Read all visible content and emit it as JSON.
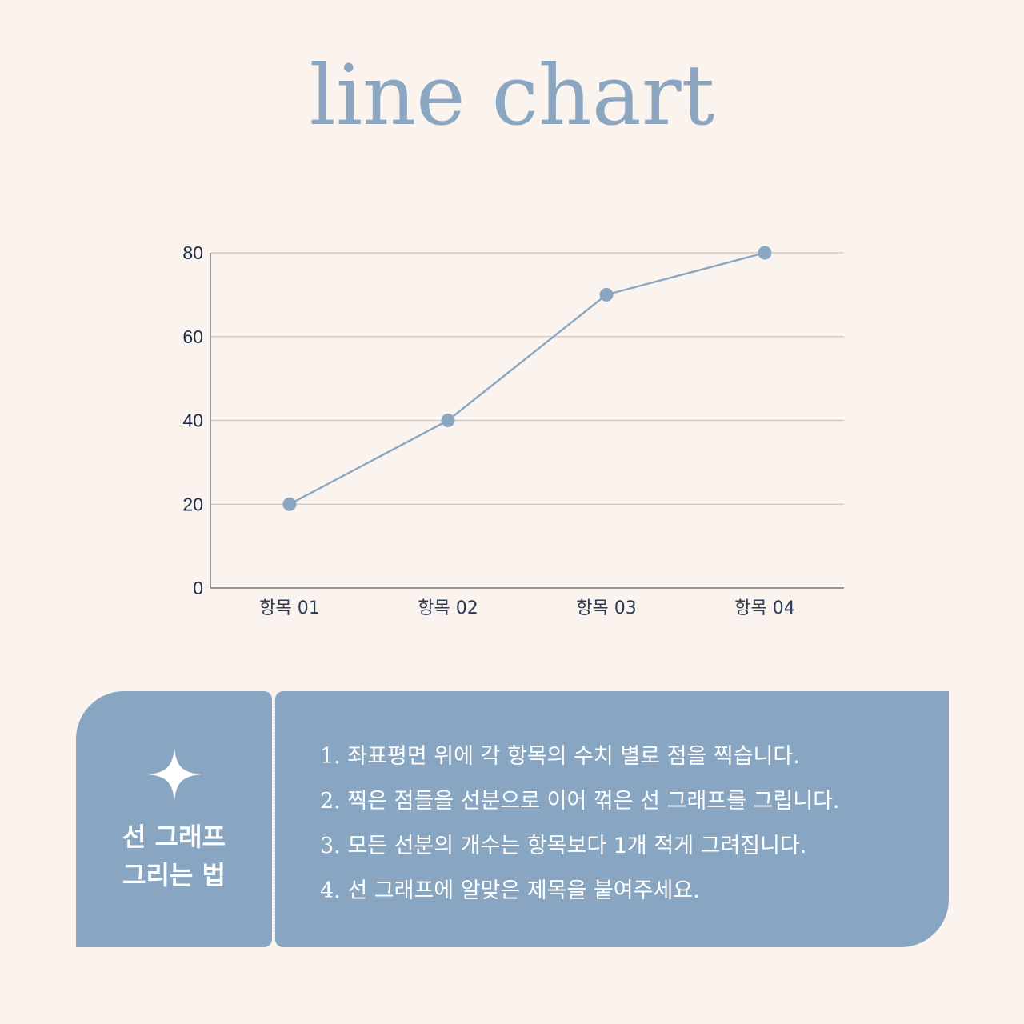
{
  "title": "line chart",
  "chart_data": {
    "type": "line",
    "categories": [
      "항목 01",
      "항목 02",
      "항목 03",
      "항목 04"
    ],
    "values": [
      20,
      40,
      70,
      80
    ],
    "ylim": [
      0,
      80
    ],
    "yticks": [
      0,
      20,
      40,
      60,
      80
    ],
    "grid": true,
    "line_color": "#8aa6c1"
  },
  "info": {
    "title_line1": "선 그래프",
    "title_line2": "그리는 법",
    "steps": [
      {
        "num": "1.",
        "text": " 좌표평면 위에 각 항목의 수치 별로 점을 찍습니다."
      },
      {
        "num": "2.",
        "text": " 찍은 점들을 선분으로 이어 꺾은 선 그래프를 그립니다."
      },
      {
        "num": "3.",
        "text": " 모든 선분의 개수는 항목보다 1개 적게 그려집니다."
      },
      {
        "num": "4.",
        "text": " 선 그래프에 알맞은 제목을 붙여주세요."
      }
    ],
    "icon": "sparkle-icon",
    "panel_color": "#88a6c2"
  }
}
